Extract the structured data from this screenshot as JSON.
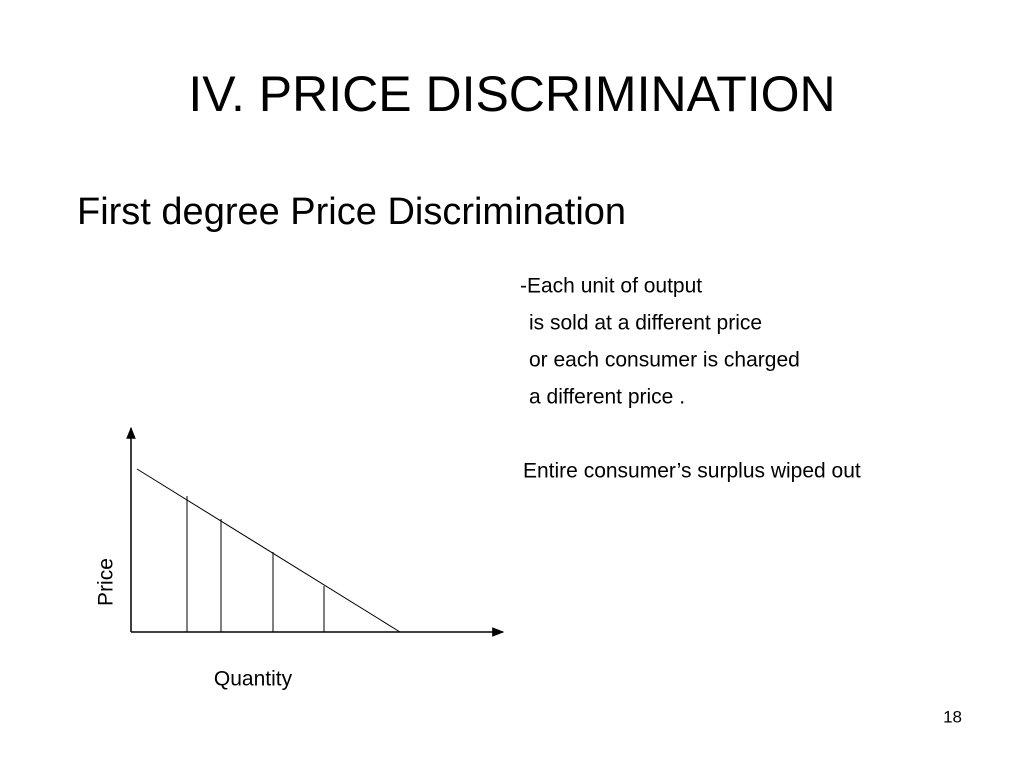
{
  "slide": {
    "title": "IV. PRICE DISCRIMINATION",
    "subtitle": "First degree Price Discrimination",
    "description": [
      "-Each unit of output",
      "is sold at a different price",
      "or each consumer is charged",
      "a different price ."
    ],
    "note": "Entire consumer’s surplus wiped out",
    "diagram": {
      "y_label": "Price",
      "x_label": "Quantity"
    },
    "page_number": "18"
  }
}
